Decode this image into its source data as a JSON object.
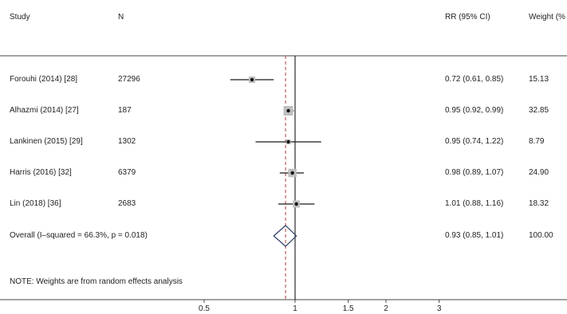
{
  "header": {
    "study": "Study",
    "n": "N",
    "rr": "RR (95% CI)",
    "weight": "Weight (%"
  },
  "note": "NOTE: Weights are from random effects analysis",
  "chart_data": {
    "type": "forest",
    "x_scale": "log",
    "xlim": [
      0.4,
      3.3
    ],
    "xticks": [
      0.5,
      1,
      1.5,
      2,
      3
    ],
    "xtick_labels": [
      "0.5",
      "1",
      "1.5",
      "2",
      "3"
    ],
    "null_line": 1,
    "studies": [
      {
        "label": "Forouhi (2014) [28]",
        "n": "27296",
        "rr": 0.72,
        "lo": 0.61,
        "hi": 0.85,
        "rr_text": "0.72 (0.61, 0.85)",
        "weight": 15.13,
        "weight_text": "15.13"
      },
      {
        "label": "Alhazmi (2014) [27]",
        "n": "187",
        "rr": 0.95,
        "lo": 0.92,
        "hi": 0.99,
        "rr_text": "0.95 (0.92, 0.99)",
        "weight": 32.85,
        "weight_text": "32.85"
      },
      {
        "label": "Lankinen (2015) [29]",
        "n": "1302",
        "rr": 0.95,
        "lo": 0.74,
        "hi": 1.22,
        "rr_text": "0.95 (0.74, 1.22)",
        "weight": 8.79,
        "weight_text": "8.79"
      },
      {
        "label": "Harris (2016) [32]",
        "n": "6379",
        "rr": 0.98,
        "lo": 0.89,
        "hi": 1.07,
        "rr_text": "0.98 (0.89, 1.07)",
        "weight": 24.9,
        "weight_text": "24.90"
      },
      {
        "label": "Lin (2018) [36]",
        "n": "2683",
        "rr": 1.01,
        "lo": 0.88,
        "hi": 1.16,
        "rr_text": "1.01 (0.88, 1.16)",
        "weight": 18.32,
        "weight_text": "18.32"
      }
    ],
    "overall": {
      "label": "Overall  (I–squared = 66.3%, p = 0.018)",
      "rr": 0.93,
      "lo": 0.85,
      "hi": 1.01,
      "rr_text": "0.93 (0.85, 1.01)",
      "weight_text": "100.00"
    },
    "colors": {
      "null_line": "#000000",
      "overall_line": "#b03a3a",
      "ci_line": "#1a1a1a",
      "weight_box": "#bfbfbf",
      "point": "#111111",
      "diamond": "#2c3e66"
    }
  }
}
